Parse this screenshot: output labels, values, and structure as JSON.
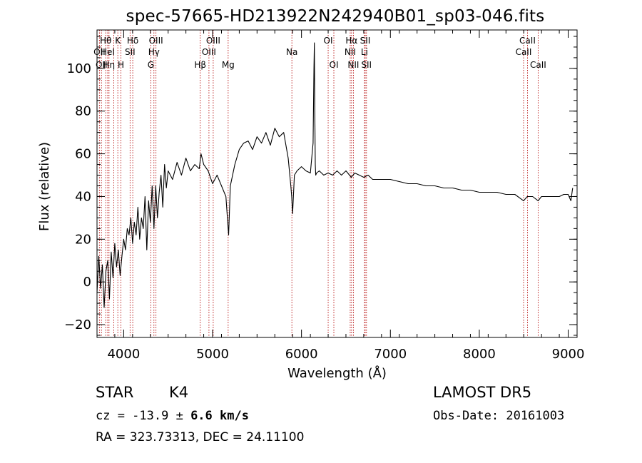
{
  "title": "spec-57665-HD213922N242940B01_sp03-046.fits",
  "footer": {
    "object_type": "STAR",
    "subclass": "K4",
    "survey": "LAMOST  DR5",
    "cz_prefix": "cz = -13.9 ± ",
    "cz_err": "6.6 km/s",
    "obs_date": "Obs-Date: 20161003",
    "radec": "RA = 323.73313, DEC =  24.11100"
  },
  "chart_data": {
    "type": "line",
    "title": "spec-57665-HD213922N242940B01_sp03-046.fits",
    "xlabel": "Wavelength (Å)",
    "ylabel": "Flux (relative)",
    "xlim": [
      3700,
      9100
    ],
    "ylim": [
      -26,
      118
    ],
    "x_ticks": [
      4000,
      5000,
      6000,
      7000,
      8000,
      9000
    ],
    "y_ticks": [
      -20,
      0,
      20,
      40,
      60,
      80,
      100
    ],
    "x_minor_step": 200,
    "y_minor_step": 5,
    "grid": false,
    "legend": "none",
    "series": [
      {
        "x": [
          3700,
          3720,
          3740,
          3760,
          3780,
          3800,
          3820,
          3840,
          3860,
          3880,
          3900,
          3920,
          3940,
          3960,
          3980,
          4000,
          4020,
          4040,
          4060,
          4080,
          4100,
          4120,
          4140,
          4160,
          4180,
          4200,
          4220,
          4240,
          4260,
          4280,
          4300,
          4320,
          4340,
          4360,
          4380,
          4400,
          4420,
          4440,
          4460,
          4480,
          4500,
          4550,
          4600,
          4650,
          4700,
          4750,
          4800,
          4850,
          4870,
          4900,
          4950,
          5000,
          5050,
          5100,
          5150,
          5170,
          5180,
          5200,
          5250,
          5300,
          5350,
          5400,
          5450,
          5500,
          5550,
          5600,
          5650,
          5700,
          5750,
          5800,
          5850,
          5880,
          5890,
          5900,
          5920,
          5950,
          6000,
          6050,
          6100,
          6130,
          6140,
          6145,
          6150,
          6155,
          6160,
          6170,
          6200,
          6250,
          6300,
          6350,
          6400,
          6450,
          6500,
          6560,
          6600,
          6650,
          6700,
          6750,
          6800,
          6900,
          7000,
          7100,
          7200,
          7300,
          7400,
          7500,
          7600,
          7700,
          7800,
          7900,
          8000,
          8100,
          8200,
          8300,
          8400,
          8498,
          8540,
          8600,
          8662,
          8700,
          8800,
          8900,
          8950,
          9000,
          9030,
          9050
        ],
        "y": [
          -5,
          12,
          -3,
          8,
          -12,
          5,
          10,
          -8,
          14,
          2,
          18,
          7,
          15,
          3,
          12,
          20,
          15,
          25,
          22,
          30,
          18,
          28,
          22,
          35,
          20,
          30,
          25,
          40,
          15,
          38,
          28,
          45,
          25,
          45,
          30,
          42,
          50,
          35,
          55,
          44,
          52,
          48,
          56,
          50,
          58,
          52,
          55,
          53,
          60,
          55,
          52,
          46,
          50,
          45,
          40,
          28,
          22,
          45,
          55,
          62,
          65,
          66,
          62,
          68,
          65,
          70,
          64,
          72,
          68,
          70,
          58,
          45,
          40,
          32,
          50,
          52,
          54,
          52,
          51,
          65,
          100,
          112,
          80,
          55,
          50,
          51,
          52,
          50,
          51,
          50,
          52,
          50,
          52,
          49,
          51,
          50,
          49,
          50,
          48,
          48,
          48,
          47,
          46,
          46,
          45,
          45,
          44,
          44,
          43,
          43,
          42,
          42,
          42,
          41,
          41,
          38,
          40,
          40,
          38,
          40,
          40,
          40,
          41,
          41,
          38,
          44
        ]
      }
    ],
    "lines": [
      {
        "wavelength": 3727,
        "name": "OII",
        "row": 2
      },
      {
        "wavelength": 3750,
        "name": "OII",
        "row": 3
      },
      {
        "wavelength": 3798,
        "name": "Hθ",
        "row": 1
      },
      {
        "wavelength": 3820,
        "name": "HeI",
        "row": 2
      },
      {
        "wavelength": 3835,
        "name": "Hη",
        "row": 3
      },
      {
        "wavelength": 3889,
        "name": "",
        "row": 0
      },
      {
        "wavelength": 3934,
        "name": "K",
        "row": 1
      },
      {
        "wavelength": 3969,
        "name": "H",
        "row": 3
      },
      {
        "wavelength": 4072,
        "name": "SII",
        "row": 2
      },
      {
        "wavelength": 4102,
        "name": "Hδ",
        "row": 1
      },
      {
        "wavelength": 4305,
        "name": "G",
        "row": 3
      },
      {
        "wavelength": 4340,
        "name": "Hγ",
        "row": 2
      },
      {
        "wavelength": 4363,
        "name": "OIII",
        "row": 1
      },
      {
        "wavelength": 4861,
        "name": "Hβ",
        "row": 3
      },
      {
        "wavelength": 4959,
        "name": "OIII",
        "row": 2
      },
      {
        "wavelength": 5007,
        "name": "OIII",
        "row": 1
      },
      {
        "wavelength": 5175,
        "name": "Mg",
        "row": 3
      },
      {
        "wavelength": 5892,
        "name": "Na",
        "row": 2
      },
      {
        "wavelength": 6300,
        "name": "OI",
        "row": 1
      },
      {
        "wavelength": 6364,
        "name": "OI",
        "row": 3
      },
      {
        "wavelength": 6548,
        "name": "NII",
        "row": 2
      },
      {
        "wavelength": 6563,
        "name": "Hα",
        "row": 1
      },
      {
        "wavelength": 6584,
        "name": "NII",
        "row": 3
      },
      {
        "wavelength": 6708,
        "name": "Li",
        "row": 2
      },
      {
        "wavelength": 6717,
        "name": "SII",
        "row": 1
      },
      {
        "wavelength": 6731,
        "name": "SII",
        "row": 3
      },
      {
        "wavelength": 8498,
        "name": "CaII",
        "row": 2
      },
      {
        "wavelength": 8542,
        "name": "CaII",
        "row": 1
      },
      {
        "wavelength": 8662,
        "name": "CaII",
        "row": 3
      }
    ]
  }
}
